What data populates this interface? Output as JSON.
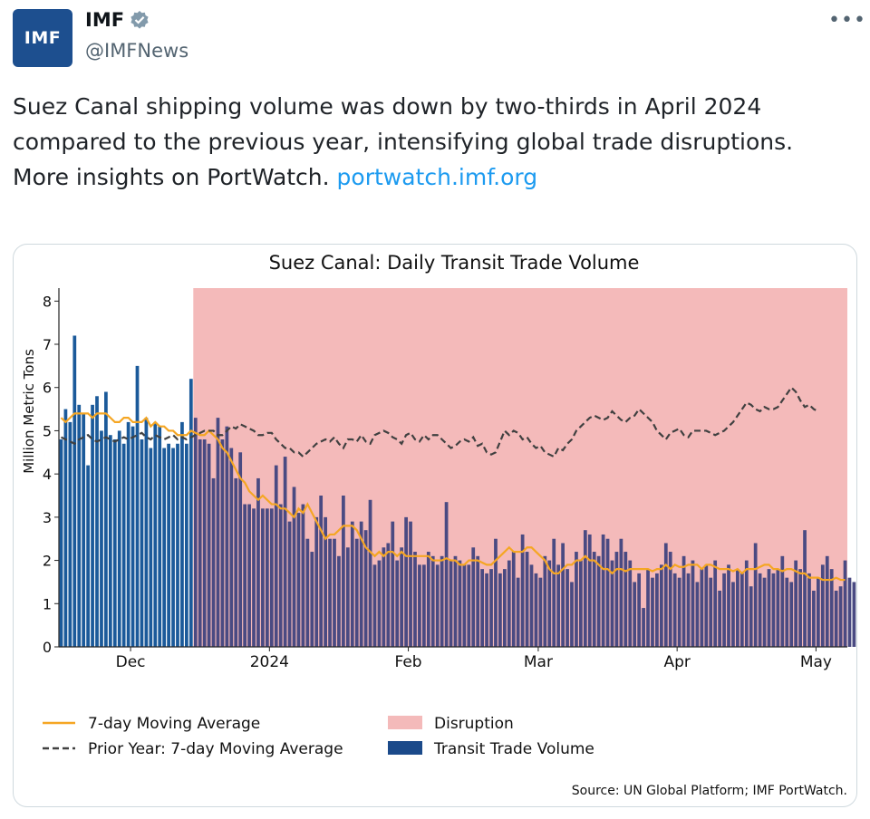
{
  "account": {
    "avatar_text": "IMF",
    "name": "IMF",
    "handle": "@IMFNews",
    "verified_icon": "verified-badge-icon",
    "more_label": "•••"
  },
  "tweet": {
    "line1": "Suez Canal shipping volume was down by two-thirds in April 2024",
    "line2": "compared to the previous year, intensifying global trade disruptions.",
    "line3": "More insights on PortWatch. ",
    "link": "portwatch.imf.org"
  },
  "chart_data": {
    "type": "bar",
    "title": "Suez Canal: Daily Transit Trade Volume",
    "ylabel": "Million Metric Tons",
    "xlabel": "",
    "ylim": [
      0,
      8.3
    ],
    "yticks": [
      0,
      1,
      2,
      3,
      4,
      5,
      6,
      7,
      8
    ],
    "xtick_labels": [
      "Dec",
      "2024",
      "Feb",
      "Mar",
      "Apr",
      "May"
    ],
    "xtick_day_index": [
      16,
      47,
      78,
      107,
      138,
      169
    ],
    "disruption_start_index": 30,
    "num_days": 176,
    "series": [
      {
        "name": "Transit Trade Volume",
        "color_pre": "#1b5a9a",
        "color_post": "#4a4a82",
        "values": [
          4.8,
          5.5,
          5.2,
          7.2,
          5.6,
          5.4,
          4.2,
          5.6,
          5.8,
          5.0,
          5.9,
          4.9,
          4.8,
          5.0,
          4.7,
          5.2,
          5.1,
          6.5,
          4.8,
          5.3,
          4.6,
          5.2,
          5.1,
          4.6,
          4.7,
          4.6,
          4.7,
          5.2,
          4.7,
          6.2,
          5.3,
          4.8,
          4.8,
          4.7,
          3.9,
          5.3,
          4.8,
          5.1,
          4.6,
          3.9,
          4.5,
          3.3,
          3.3,
          3.2,
          3.9,
          3.2,
          3.2,
          3.2,
          4.2,
          3.3,
          4.4,
          2.9,
          3.7,
          3.1,
          3.3,
          2.5,
          2.2,
          3.0,
          3.5,
          3.0,
          2.5,
          2.5,
          2.1,
          3.5,
          2.3,
          2.9,
          2.5,
          2.9,
          2.7,
          3.4,
          1.9,
          2.0,
          2.3,
          2.4,
          2.9,
          2.0,
          2.3,
          3.0,
          2.9,
          2.2,
          1.9,
          1.9,
          2.2,
          2.1,
          1.9,
          2.1,
          3.35,
          2.0,
          2.1,
          2.0,
          1.9,
          1.9,
          2.3,
          2.1,
          1.8,
          1.7,
          1.8,
          2.5,
          1.7,
          1.8,
          2.0,
          2.2,
          1.6,
          2.6,
          2.2,
          1.9,
          1.7,
          1.6,
          2.1,
          2.0,
          2.5,
          1.9,
          2.4,
          1.8,
          1.5,
          2.2,
          2.0,
          2.7,
          2.6,
          2.2,
          2.1,
          2.6,
          2.5,
          2.0,
          2.2,
          2.5,
          2.2,
          2.0,
          1.5,
          1.7,
          0.9,
          1.8,
          1.6,
          1.7,
          1.9,
          2.4,
          2.2,
          1.7,
          1.6,
          2.1,
          1.7,
          2.0,
          1.5,
          1.8,
          1.9,
          1.6,
          2.0,
          1.3,
          1.7,
          1.9,
          1.5,
          1.8,
          1.7,
          2.0,
          1.4,
          2.4,
          1.7,
          1.6,
          1.8,
          1.7,
          1.8,
          2.1,
          1.6,
          1.5,
          2.0,
          1.8,
          2.7,
          1.7,
          1.3,
          1.6,
          1.9,
          2.1,
          1.8,
          1.3,
          1.4,
          2.0,
          1.6,
          1.5
        ]
      }
    ],
    "lines": [
      {
        "name": "7-day Moving Average",
        "color": "#f5a623",
        "style": "solid",
        "values": [
          5.3,
          5.2,
          5.3,
          5.4,
          5.4,
          5.4,
          5.4,
          5.3,
          5.4,
          5.4,
          5.4,
          5.3,
          5.2,
          5.2,
          5.3,
          5.3,
          5.2,
          5.2,
          5.2,
          5.3,
          5.1,
          5.2,
          5.1,
          5.1,
          5.0,
          5.0,
          4.9,
          4.9,
          4.9,
          5.0,
          4.95,
          4.9,
          4.9,
          5.0,
          4.9,
          4.8,
          4.6,
          4.5,
          4.3,
          4.1,
          3.9,
          3.8,
          3.6,
          3.5,
          3.4,
          3.5,
          3.4,
          3.3,
          3.3,
          3.2,
          3.2,
          3.1,
          3.0,
          3.2,
          3.1,
          3.3,
          3.1,
          2.9,
          2.7,
          2.5,
          2.6,
          2.6,
          2.7,
          2.8,
          2.8,
          2.8,
          2.7,
          2.5,
          2.3,
          2.2,
          2.1,
          2.2,
          2.1,
          2.2,
          2.2,
          2.1,
          2.2,
          2.1,
          2.1,
          2.1,
          2.1,
          2.1,
          2.1,
          2.0,
          2.0,
          2.0,
          2.05,
          2.0,
          2.0,
          1.9,
          1.9,
          2.0,
          2.0,
          2.0,
          1.95,
          1.9,
          1.9,
          2.0,
          2.1,
          2.2,
          2.3,
          2.2,
          2.2,
          2.2,
          2.3,
          2.3,
          2.2,
          2.1,
          2.0,
          1.8,
          1.7,
          1.7,
          1.8,
          1.9,
          1.9,
          2.0,
          2.0,
          2.1,
          2.0,
          2.0,
          1.9,
          1.8,
          1.8,
          1.7,
          1.8,
          1.8,
          1.75,
          1.8,
          1.8,
          1.8,
          1.8,
          1.8,
          1.75,
          1.8,
          1.8,
          1.9,
          1.8,
          1.9,
          1.85,
          1.85,
          1.9,
          1.9,
          1.9,
          1.8,
          1.9,
          1.9,
          1.85,
          1.8,
          1.8,
          1.8,
          1.75,
          1.8,
          1.7,
          1.8,
          1.8,
          1.8,
          1.85,
          1.9,
          1.9,
          1.8,
          1.8,
          1.75,
          1.8,
          1.8,
          1.75,
          1.7,
          1.7,
          1.6,
          1.6,
          1.6,
          1.55,
          1.55,
          1.55,
          1.6,
          1.55,
          1.55
        ]
      },
      {
        "name": "Prior Year: 7-day Moving Average",
        "color": "#404040",
        "style": "dashed",
        "values": [
          4.85,
          4.8,
          4.75,
          4.7,
          4.8,
          4.85,
          4.9,
          4.8,
          4.75,
          4.8,
          4.85,
          4.8,
          4.75,
          4.8,
          4.85,
          4.8,
          4.85,
          4.9,
          4.95,
          4.85,
          4.8,
          4.9,
          4.85,
          4.8,
          4.85,
          4.9,
          4.8,
          4.85,
          4.8,
          4.85,
          4.9,
          4.95,
          5.0,
          5.0,
          5.0,
          4.9,
          4.9,
          5.0,
          5.1,
          5.05,
          5.15,
          5.1,
          5.05,
          5.0,
          4.9,
          4.9,
          4.95,
          4.95,
          4.8,
          4.7,
          4.6,
          4.6,
          4.5,
          4.5,
          4.4,
          4.5,
          4.6,
          4.7,
          4.75,
          4.8,
          4.75,
          4.85,
          4.7,
          4.6,
          4.8,
          4.8,
          4.75,
          4.9,
          4.75,
          4.7,
          4.9,
          4.95,
          5.0,
          4.95,
          4.85,
          4.8,
          4.7,
          4.9,
          4.95,
          4.8,
          4.75,
          4.9,
          4.8,
          4.9,
          4.9,
          4.8,
          4.7,
          4.6,
          4.65,
          4.75,
          4.8,
          4.75,
          4.85,
          4.65,
          4.7,
          4.5,
          4.45,
          4.5,
          4.75,
          5.0,
          4.9,
          5.0,
          4.95,
          4.8,
          4.85,
          4.7,
          4.6,
          4.65,
          4.5,
          4.45,
          4.4,
          4.6,
          4.55,
          4.7,
          4.8,
          5.0,
          5.1,
          5.2,
          5.3,
          5.35,
          5.3,
          5.25,
          5.3,
          5.45,
          5.35,
          5.25,
          5.2,
          5.3,
          5.35,
          5.5,
          5.4,
          5.3,
          5.2,
          5.0,
          4.9,
          4.8,
          4.95,
          5.0,
          5.05,
          4.9,
          4.85,
          5.0,
          5.0,
          5.0,
          5.0,
          4.95,
          4.9,
          4.95,
          5.0,
          5.1,
          5.2,
          5.35,
          5.5,
          5.65,
          5.6,
          5.5,
          5.45,
          5.55,
          5.5,
          5.5,
          5.55,
          5.7,
          5.85,
          6.0,
          5.9,
          5.7,
          5.55,
          5.6,
          5.5,
          5.45
        ]
      }
    ],
    "legend": {
      "position": "bottom",
      "items": [
        "7-day Moving Average",
        "Prior Year: 7-day Moving Average",
        "Disruption",
        "Transit Trade Volume"
      ],
      "disruption_color": "#f4baba"
    },
    "source_note": "Source: UN Global Platform; IMF PortWatch."
  }
}
